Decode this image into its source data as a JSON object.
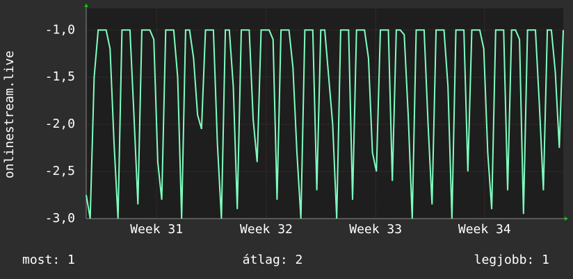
{
  "chart_data": {
    "type": "line",
    "y_label": "onlinestream.live",
    "color": "#7fffbf",
    "grid": true,
    "ylim": [
      -3,
      -0.77
    ],
    "yticks": [
      {
        "value": -3,
        "label": "-3,0"
      },
      {
        "value": -2.5,
        "label": "-2,5"
      },
      {
        "value": -2,
        "label": "-2,0"
      },
      {
        "value": -1.5,
        "label": "-1,5"
      },
      {
        "value": -1,
        "label": "-1,0"
      }
    ],
    "xlim": [
      0,
      120
    ],
    "xticks": [
      {
        "value": 17.7,
        "label": "Week 31"
      },
      {
        "value": 45.3,
        "label": "Week 32"
      },
      {
        "value": 72.8,
        "label": "Week 33"
      },
      {
        "value": 100.2,
        "label": "Week 34"
      }
    ],
    "values": [
      -2.75,
      -3,
      -1.5,
      -1,
      -1,
      -1,
      -1.2,
      -2.2,
      -3,
      -1,
      -1,
      -1,
      -1.9,
      -2.85,
      -1,
      -1,
      -1,
      -1.1,
      -2.4,
      -2.8,
      -1,
      -1,
      -1,
      -1.5,
      -3,
      -1,
      -1,
      -1.3,
      -1.9,
      -2.05,
      -1,
      -1,
      -1,
      -2.2,
      -3,
      -1,
      -1,
      -1.6,
      -2.9,
      -1,
      -1,
      -1,
      -1.95,
      -2.4,
      -1,
      -1,
      -1,
      -1.1,
      -2.8,
      -1,
      -1,
      -1,
      -1.4,
      -2.3,
      -3,
      -1,
      -1,
      -1,
      -2.7,
      -1,
      -1,
      -1.5,
      -2.0,
      -3,
      -1,
      -1,
      -1,
      -2.8,
      -1,
      -1,
      -1,
      -1.3,
      -2.3,
      -2.5,
      -1,
      -1,
      -1,
      -2.6,
      -1,
      -1,
      -1.05,
      -1.9,
      -3,
      -1,
      -1,
      -1,
      -2.0,
      -2.85,
      -1,
      -1,
      -1,
      -1.6,
      -3,
      -1,
      -1,
      -1,
      -2.5,
      -1,
      -1,
      -1,
      -1.2,
      -2.3,
      -2.9,
      -1,
      -1,
      -1,
      -2.7,
      -1,
      -1,
      -1.1,
      -2.95,
      -1,
      -1,
      -1,
      -1.8,
      -2.7,
      -1,
      -1,
      -1.45,
      -2.25,
      -1
    ],
    "stats": [
      {
        "label": "most: 1"
      },
      {
        "label": "átlag: 2"
      },
      {
        "label": "legjobb: 1"
      }
    ]
  }
}
